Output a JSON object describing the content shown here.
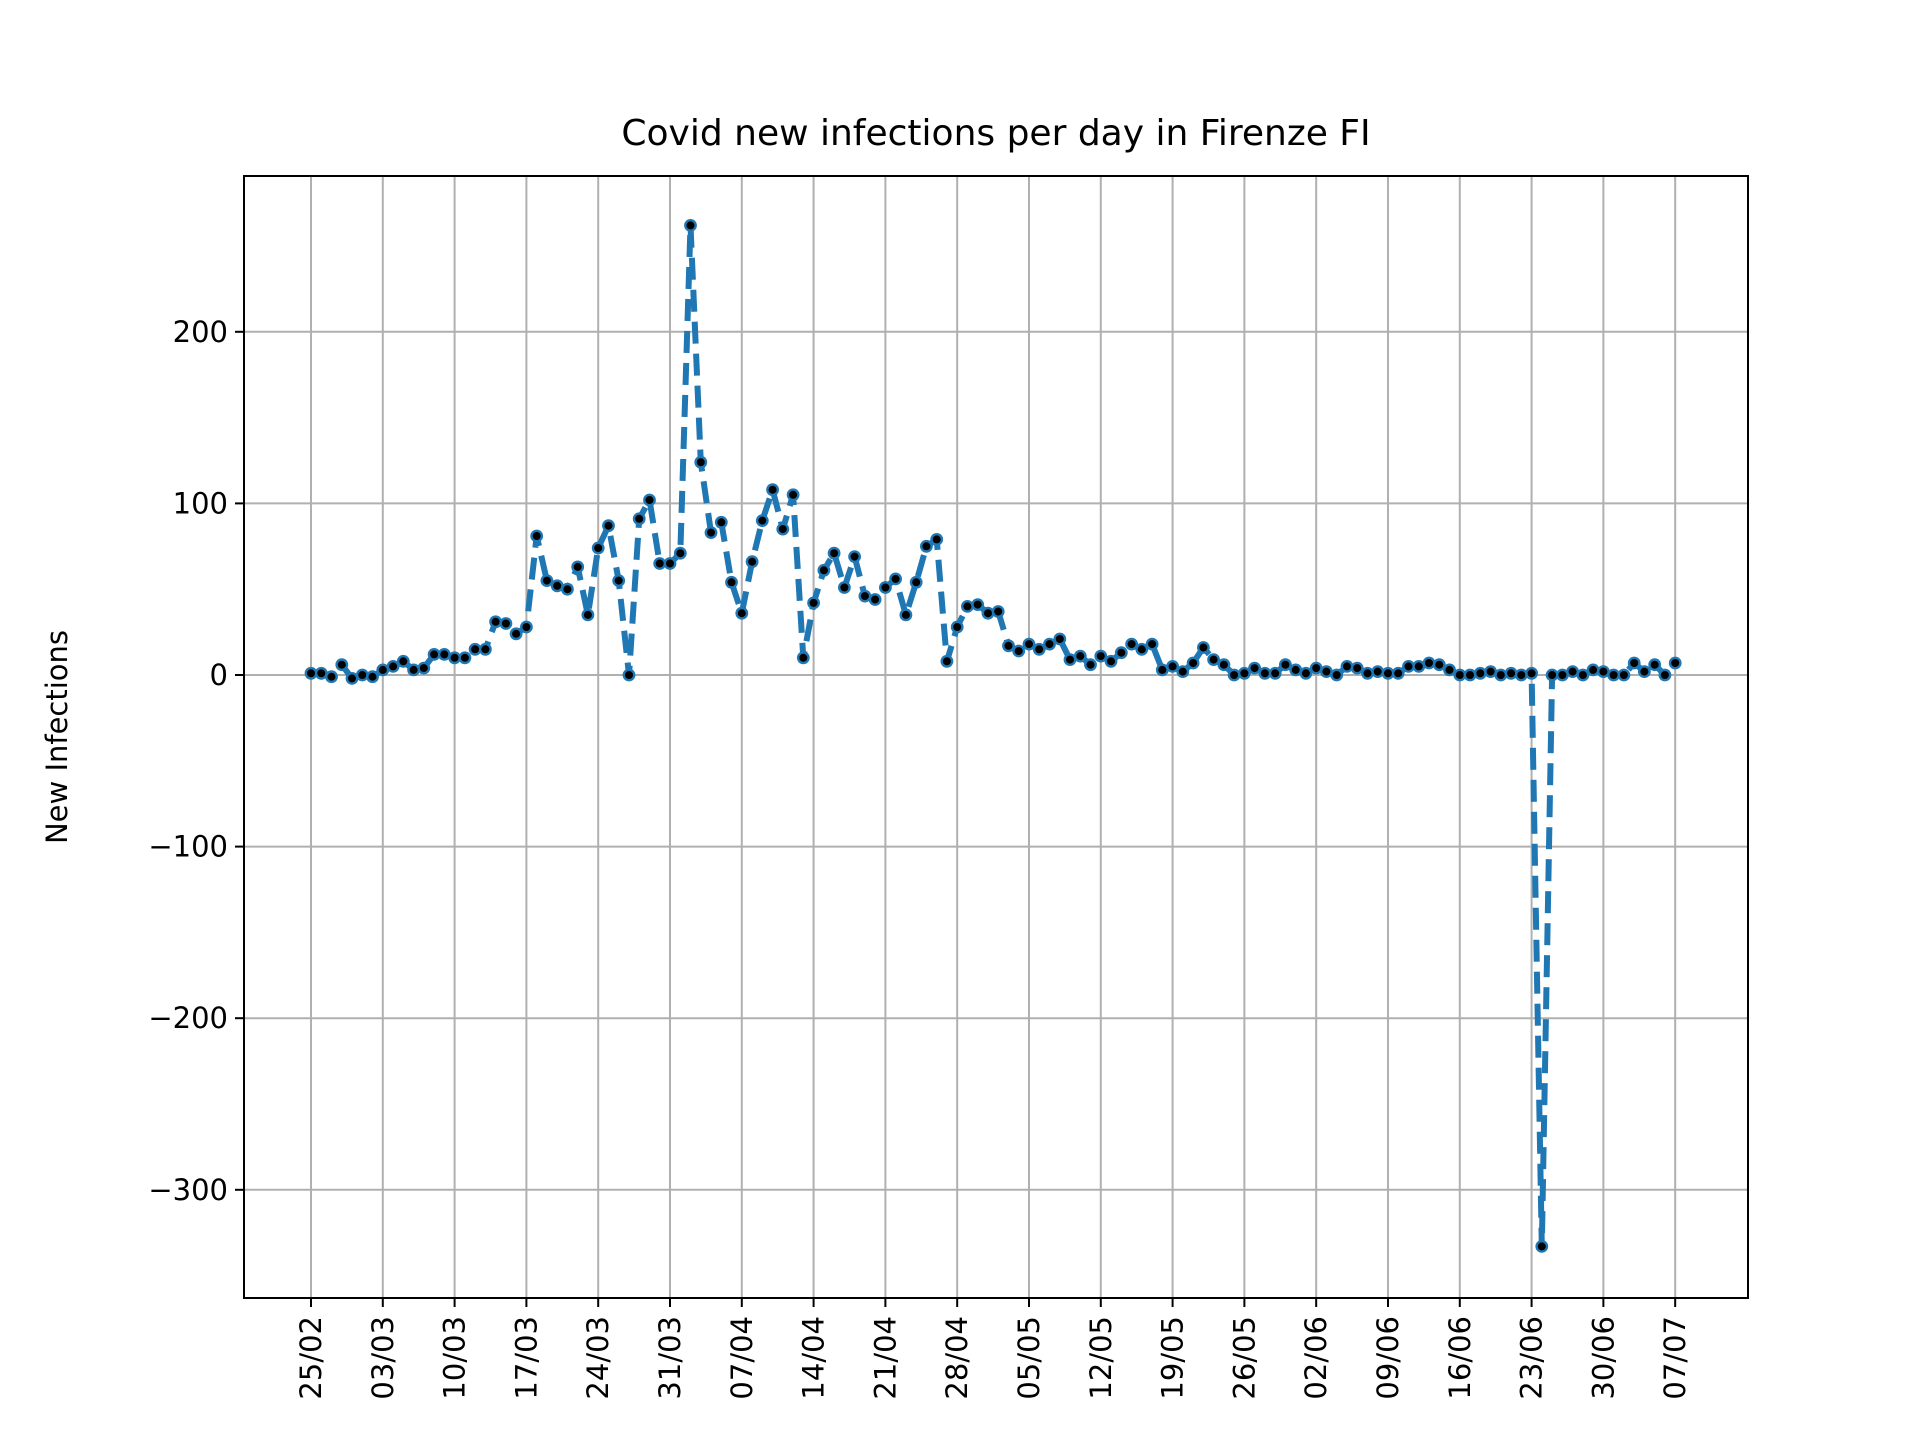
{
  "chart_data": {
    "type": "line",
    "title": "Covid new infections per day in Firenze FI",
    "xlabel": "",
    "ylabel": "New Infections",
    "x_start_date": "2020-02-25",
    "x_tick_labels": [
      "25/02",
      "03/03",
      "10/03",
      "17/03",
      "24/03",
      "31/03",
      "07/04",
      "14/04",
      "21/04",
      "28/04",
      "05/05",
      "12/05",
      "19/05",
      "26/05",
      "02/06",
      "09/06",
      "16/06",
      "23/06",
      "30/06",
      "07/07"
    ],
    "y_ticks": [
      -300,
      -200,
      -100,
      0,
      100,
      200
    ],
    "ylim": [
      -362,
      290
    ],
    "grid": true,
    "line_style": "dashed",
    "line_color": "#1f77b4",
    "marker_color": "#000000",
    "series": [
      {
        "values": [
          1,
          1,
          -1,
          6,
          -2,
          0,
          -1,
          3,
          5,
          8,
          3,
          4,
          12,
          12,
          10,
          10,
          15,
          15,
          31,
          30,
          24,
          28,
          81,
          55,
          52,
          50,
          63,
          35,
          74,
          87,
          55,
          0,
          91,
          102,
          65,
          65,
          71,
          262,
          124,
          83,
          89,
          54,
          36,
          66,
          90,
          108,
          85,
          105,
          10,
          42,
          61,
          71,
          51,
          69,
          46,
          44,
          51,
          56,
          35,
          54,
          75,
          79,
          8,
          28,
          40,
          41,
          36,
          37,
          17,
          14,
          18,
          15,
          18,
          21,
          9,
          11,
          6,
          11,
          8,
          13,
          18,
          15,
          18,
          3,
          5,
          2,
          7,
          16,
          9,
          6,
          0,
          1,
          4,
          1,
          1,
          6,
          3,
          1,
          4,
          2,
          0,
          5,
          4,
          1,
          2,
          1,
          1,
          5,
          5,
          7,
          6,
          3,
          0,
          0,
          1,
          2,
          0,
          1,
          0,
          1,
          -333,
          0,
          0,
          2,
          0,
          3,
          2,
          0,
          0,
          7,
          2,
          6,
          0,
          7
        ]
      }
    ]
  }
}
